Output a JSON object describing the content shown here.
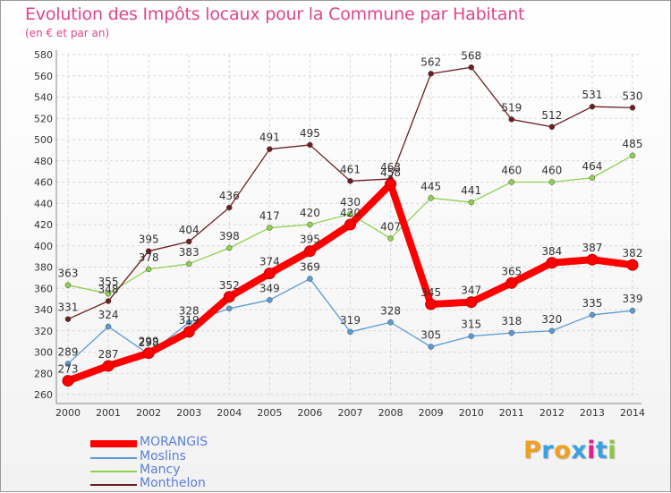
{
  "title": "Evolution des Impôts locaux pour la Commune par Habitant",
  "subtitle": "(en € et par an)",
  "logo": {
    "text": "Proxiti",
    "letters": [
      "P",
      "r",
      "o",
      "x",
      "i",
      "t",
      "i"
    ],
    "colors": [
      "#f0a020",
      "#3aa0e0",
      "#f0a020",
      "#3aa0e0",
      "#e0208a",
      "#3aa0e0",
      "#8cc63f"
    ]
  },
  "chart_data": {
    "type": "line",
    "title": "Evolution des Impôts locaux pour la Commune par Habitant",
    "subtitle": "(en € et par an)",
    "x": [
      "2000",
      "2001",
      "2002",
      "2003",
      "2004",
      "2005",
      "2006",
      "2007",
      "2008",
      "2009",
      "2010",
      "2011",
      "2012",
      "2013",
      "2014"
    ],
    "ylim": [
      260,
      580
    ],
    "yticks": [
      260,
      280,
      300,
      320,
      340,
      360,
      380,
      400,
      420,
      440,
      460,
      480,
      500,
      520,
      540,
      560,
      580
    ],
    "grid": true,
    "legend_position": "bottom",
    "series": [
      {
        "name": "MORANGIS",
        "color": "#ff0000",
        "values": [
          273,
          287,
          299,
          319,
          352,
          374,
          395,
          420,
          458,
          345,
          347,
          365,
          384,
          387,
          382
        ],
        "labels": [
          "273",
          "287",
          "299",
          "319",
          "352",
          "374",
          "395",
          "420",
          "458",
          "345",
          "347",
          "365",
          "384",
          "387",
          "382"
        ]
      },
      {
        "name": "Moslins",
        "color": "#5b9bd5",
        "values": [
          289,
          324,
          298,
          328,
          341,
          349,
          369,
          319,
          328,
          305,
          315,
          318,
          320,
          335,
          339
        ],
        "labels": [
          "289",
          "324",
          "298",
          "328",
          "",
          "349",
          "369",
          "319",
          "328",
          "305",
          "315",
          "318",
          "320",
          "335",
          "339"
        ]
      },
      {
        "name": "Mancy",
        "color": "#8fd14f",
        "values": [
          363,
          355,
          378,
          383,
          398,
          417,
          420,
          430,
          407,
          445,
          441,
          460,
          460,
          464,
          485
        ],
        "labels": [
          "363",
          "355",
          "378",
          "383",
          "398",
          "417",
          "420",
          "430",
          "407",
          "445",
          "441",
          "460",
          "460",
          "464",
          "485"
        ]
      },
      {
        "name": "Monthelon",
        "color": "#6b1f1f",
        "values": [
          331,
          348,
          395,
          404,
          436,
          491,
          495,
          461,
          463,
          562,
          568,
          519,
          512,
          531,
          530
        ],
        "labels": [
          "331",
          "348",
          "395",
          "404",
          "436",
          "491",
          "495",
          "461",
          "463",
          "562",
          "568",
          "519",
          "512",
          "531",
          "530"
        ]
      }
    ]
  }
}
